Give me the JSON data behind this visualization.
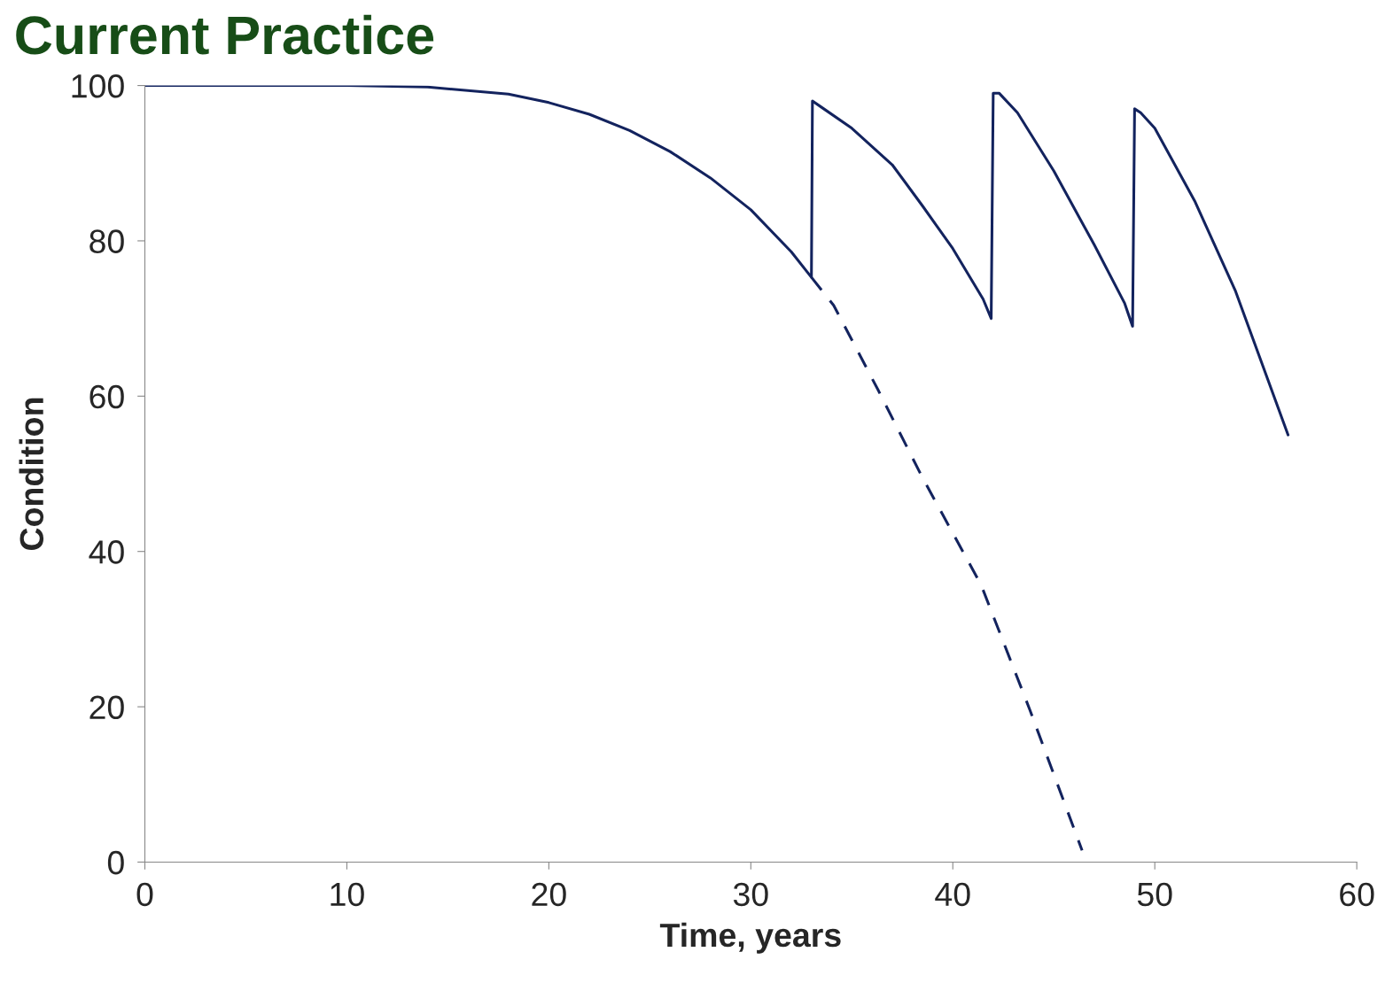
{
  "chart_data": {
    "type": "line",
    "title": "Current Practice",
    "xlabel": "Time, years",
    "ylabel": "Condition",
    "series": [
      {
        "color": "#13235e",
        "line_style": "solid",
        "x": [
          0,
          10,
          14,
          18,
          20,
          22,
          24,
          26,
          28,
          30,
          32,
          33,
          33.05,
          33.5,
          35,
          37,
          38.5,
          40,
          41.5,
          41.9,
          42.0,
          42.3,
          43.2,
          45,
          47,
          48.5,
          48.9,
          49.0,
          49.3,
          50,
          52,
          54,
          56.6
        ],
        "values": [
          100,
          100,
          99.8,
          98.9,
          97.8,
          96.3,
          94.2,
          91.5,
          88.1,
          84,
          78.6,
          75.3,
          98,
          97.2,
          94.5,
          89.8,
          84.5,
          79,
          72.5,
          70,
          99,
          99,
          96.5,
          89,
          79.5,
          72,
          69,
          97,
          96.5,
          94.5,
          85,
          73.5,
          55
        ]
      },
      {
        "color": "#13235e",
        "line_style": "dashed",
        "x": [
          33,
          34.1,
          36.3,
          38.5,
          41.4,
          43.8,
          46.4
        ],
        "values": [
          75.3,
          71.7,
          60.8,
          49.5,
          35.7,
          19.7,
          1.5
        ]
      }
    ],
    "xlim": [
      0,
      60
    ],
    "xticks": [
      0,
      10,
      20,
      30,
      40,
      50,
      60
    ],
    "ylim": [
      0,
      100
    ],
    "yticks": [
      0,
      20,
      40,
      60,
      80,
      100
    ],
    "grid": false,
    "legend": false,
    "marker": "none"
  }
}
